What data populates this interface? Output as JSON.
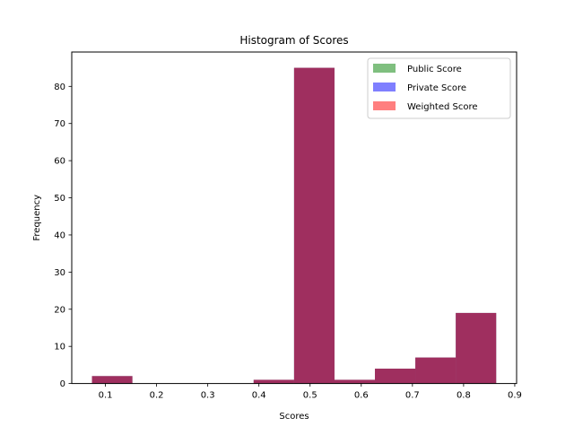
{
  "chart_data": {
    "type": "bar",
    "title": "Histogram of Scores",
    "xlabel": "Scores",
    "ylabel": "Frequency",
    "xlim": [
      0.0342,
      0.9036
    ],
    "ylim": [
      0,
      89.25
    ],
    "xticks": [
      0.1,
      0.2,
      0.3,
      0.4,
      0.5,
      0.6,
      0.7,
      0.8,
      0.9
    ],
    "yticks": [
      0,
      10,
      20,
      30,
      40,
      50,
      60,
      70,
      80
    ],
    "bin_edges": [
      0.0737,
      0.1527,
      0.2317,
      0.3107,
      0.3897,
      0.4687,
      0.5477,
      0.6267,
      0.7057,
      0.7847,
      0.8637
    ],
    "grid": false,
    "legend_position": "top-right",
    "series": [
      {
        "name": "Public Score",
        "color": "#008000",
        "opacity": 0.5,
        "values": [
          2,
          0,
          0,
          0,
          1,
          85,
          1,
          4,
          7,
          19
        ]
      },
      {
        "name": "Private Score",
        "color": "#0000ff",
        "opacity": 0.5,
        "values": [
          2,
          0,
          0,
          0,
          1,
          85,
          1,
          4,
          7,
          19
        ]
      },
      {
        "name": "Weighted Score",
        "color": "#ff0000",
        "opacity": 0.5,
        "values": [
          2,
          0,
          0,
          0,
          1,
          85,
          1,
          4,
          7,
          19
        ]
      }
    ]
  }
}
